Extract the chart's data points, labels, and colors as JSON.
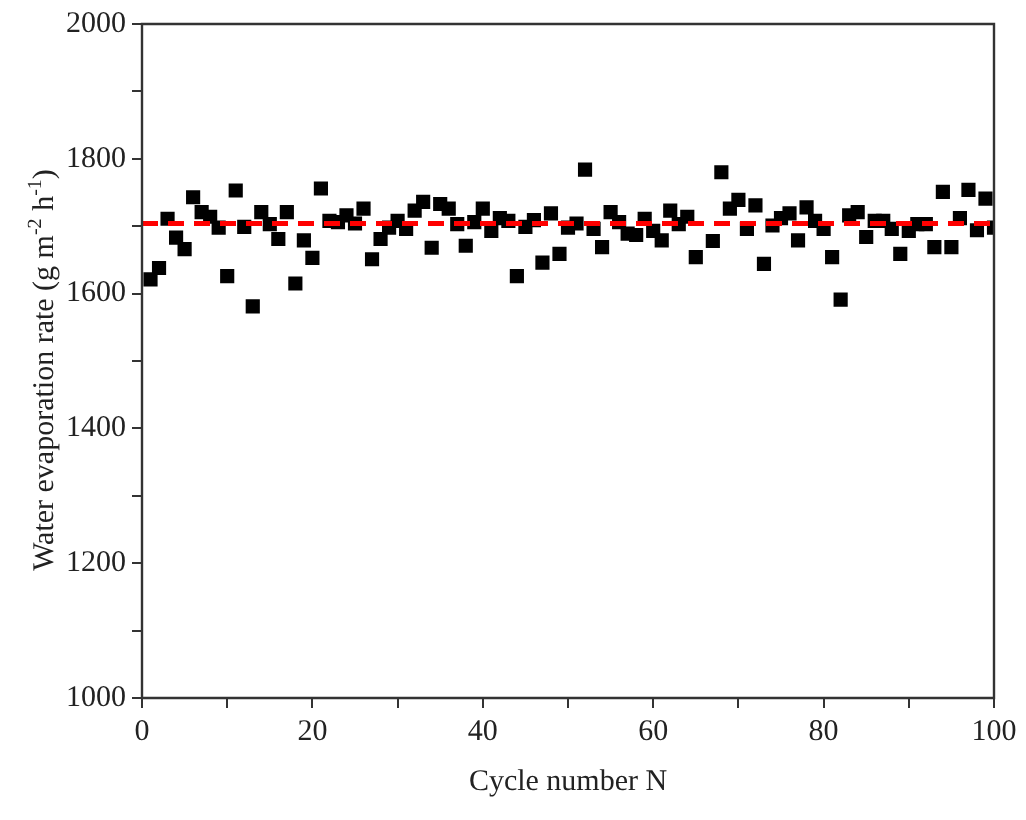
{
  "chart_data": {
    "type": "scatter",
    "xlabel": "Cycle number N",
    "ylabel": "Water evaporation rate (g m$^{-2}$ h$^{-1}$)",
    "x": [
      1,
      2,
      3,
      4,
      5,
      6,
      7,
      8,
      9,
      10,
      11,
      12,
      13,
      14,
      15,
      16,
      17,
      18,
      19,
      20,
      21,
      22,
      23,
      24,
      25,
      26,
      27,
      28,
      29,
      30,
      31,
      32,
      33,
      34,
      35,
      36,
      37,
      38,
      39,
      40,
      41,
      42,
      43,
      44,
      45,
      46,
      47,
      48,
      49,
      50,
      51,
      52,
      53,
      54,
      55,
      56,
      57,
      58,
      59,
      60,
      61,
      62,
      63,
      64,
      65,
      67,
      68,
      69,
      70,
      71,
      72,
      73,
      74,
      75,
      76,
      77,
      78,
      79,
      80,
      81,
      82,
      83,
      84,
      85,
      86,
      87,
      88,
      89,
      90,
      91,
      92,
      93,
      94,
      95,
      96,
      97,
      98,
      99,
      100
    ],
    "series": [
      {
        "color": "#000000",
        "values": [
          1621,
          1638,
          1711,
          1683,
          1666,
          1743,
          1721,
          1714,
          1698,
          1626,
          1753,
          1699,
          1581,
          1721,
          1703,
          1681,
          1721,
          1615,
          1679,
          1653,
          1756,
          1708,
          1706,
          1716,
          1704,
          1726,
          1651,
          1681,
          1698,
          1708,
          1696,
          1723,
          1736,
          1668,
          1733,
          1726,
          1703,
          1671,
          1706,
          1726,
          1693,
          1712,
          1708,
          1626,
          1699,
          1709,
          1646,
          1719,
          1659,
          1698,
          1704,
          1784,
          1696,
          1669,
          1721,
          1706,
          1689,
          1687,
          1711,
          1693,
          1679,
          1723,
          1703,
          1714,
          1654,
          1678,
          1780,
          1726,
          1739,
          1696,
          1731,
          1644,
          1701,
          1712,
          1719,
          1679,
          1728,
          1708,
          1696,
          1654,
          1591,
          1716,
          1721,
          1684,
          1708,
          1708,
          1696,
          1659,
          1693,
          1703,
          1703,
          1669,
          1751,
          1669,
          1712,
          1754,
          1694,
          1741,
          1698
        ]
      }
    ],
    "marker": "square",
    "grid": false,
    "legend": false,
    "xlim": [
      0,
      100
    ],
    "xticks": [
      0,
      {
        "value": 10,
        "label": null
      },
      20,
      {
        "value": 30,
        "label": null
      },
      40,
      {
        "value": 50,
        "label": null
      },
      60,
      {
        "value": 70,
        "label": null
      },
      80,
      {
        "value": 90,
        "label": null
      },
      100
    ],
    "ylim": [
      1000,
      2000
    ],
    "yticks": [
      1000,
      {
        "value": 1100,
        "label": null
      },
      1200,
      {
        "value": 1300,
        "label": null
      },
      1400,
      {
        "value": 1500,
        "label": null
      },
      1600,
      {
        "value": 1700,
        "label": null
      },
      1800,
      {
        "value": 1900,
        "label": null
      },
      2000
    ],
    "ref_lines": [
      {
        "axis": "y",
        "value": 1704,
        "label": null,
        "color": "#ff0000",
        "line_style": "dashed"
      }
    ]
  }
}
